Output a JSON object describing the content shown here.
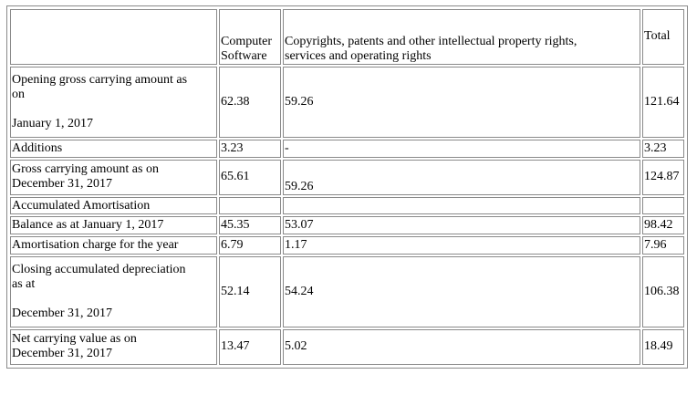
{
  "header": {
    "col1": "",
    "col2_line1": "Computer",
    "col2_line2": "Software",
    "col3_line1": "Copyrights, patents and other intellectual property rights,",
    "col3_line2": "services and operating rights",
    "col4": "Total"
  },
  "rows": [
    {
      "label_line1": "Opening gross carrying amount as",
      "label_line2": "on",
      "label_line3": "January 1, 2017",
      "software": "62.38",
      "ip_rights": "59.26",
      "total": "121.64"
    },
    {
      "label": "Additions",
      "software": "3.23",
      "ip_rights": "-",
      "total": "3.23"
    },
    {
      "label_line1": "Gross carrying amount as on",
      "label_line2": "December 31, 2017",
      "software": "65.61",
      "ip_rights": "59.26",
      "total": "124.87"
    },
    {
      "label": "Accumulated Amortisation",
      "software": "",
      "ip_rights": "",
      "total": ""
    },
    {
      "label": "Balance as at January 1, 2017",
      "software": "45.35",
      "ip_rights": "53.07",
      "total": "98.42"
    },
    {
      "label": "Amortisation charge for the year",
      "software": "6.79",
      "ip_rights": "1.17",
      "total": "7.96"
    },
    {
      "label_line1": "Closing accumulated depreciation",
      "label_line2": "as at",
      "label_line3": "December 31, 2017",
      "software": "52.14",
      "ip_rights": "54.24",
      "total": "106.38"
    },
    {
      "label_line1": "Net carrying value as on",
      "label_line2": "December 31, 2017",
      "software": "13.47",
      "ip_rights": "5.02",
      "total": "18.49"
    }
  ]
}
